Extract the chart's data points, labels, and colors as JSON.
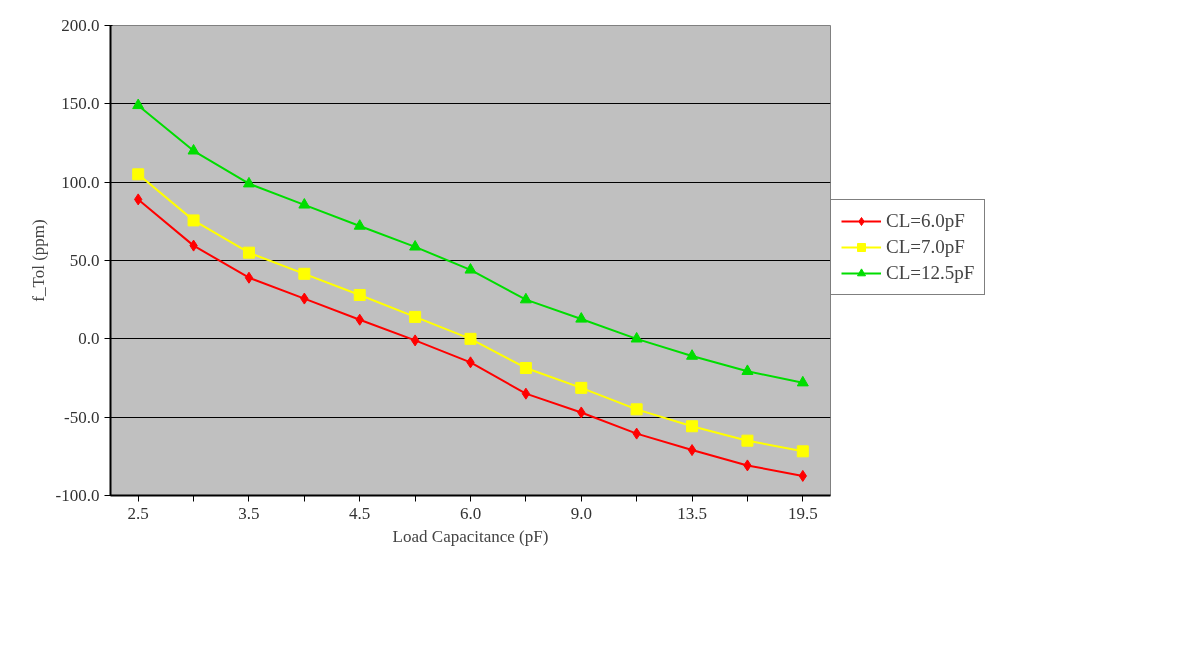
{
  "chart_data": {
    "type": "line",
    "xlabel": "Load Capacitance (pF)",
    "ylabel": "f_Tol (ppm)",
    "categories": [
      "2.5",
      null,
      "3.5",
      null,
      "4.5",
      null,
      "6.0",
      null,
      "9.0",
      null,
      "13.5",
      null,
      "19.5"
    ],
    "ylim": [
      -100,
      200
    ],
    "yticks": [
      {
        "value": -100,
        "label": "-100.0"
      },
      {
        "value": -50,
        "label": "-50.0"
      },
      {
        "value": 0,
        "label": "0.0"
      },
      {
        "value": 50,
        "label": "50.0"
      },
      {
        "value": 100,
        "label": "100.0"
      },
      {
        "value": 150,
        "label": "150.0"
      },
      {
        "value": 200,
        "label": "200.0"
      }
    ],
    "grid": "y",
    "legend": "right",
    "series": [
      {
        "name": "CL=6.0pF",
        "color": "#ff0000",
        "marker": "diamond",
        "values": [
          89,
          59.5,
          39,
          25.7,
          12.2,
          -1,
          -15,
          -35,
          -47,
          -60.5,
          -71,
          -80.8,
          -87.5
        ]
      },
      {
        "name": "CL=7.0pF",
        "color": "#ffff00",
        "marker": "square",
        "values": [
          105,
          75.6,
          55,
          41.5,
          28,
          14,
          0,
          -18.6,
          -31.3,
          -45,
          -55.8,
          -65,
          -71.8
        ]
      },
      {
        "name": "CL=12.5pF",
        "color": "#00dd00",
        "marker": "triangle",
        "values": [
          149,
          120,
          99,
          85.5,
          72,
          58.7,
          44,
          25,
          12.7,
          0,
          -11,
          -20.7,
          -28
        ]
      }
    ]
  }
}
